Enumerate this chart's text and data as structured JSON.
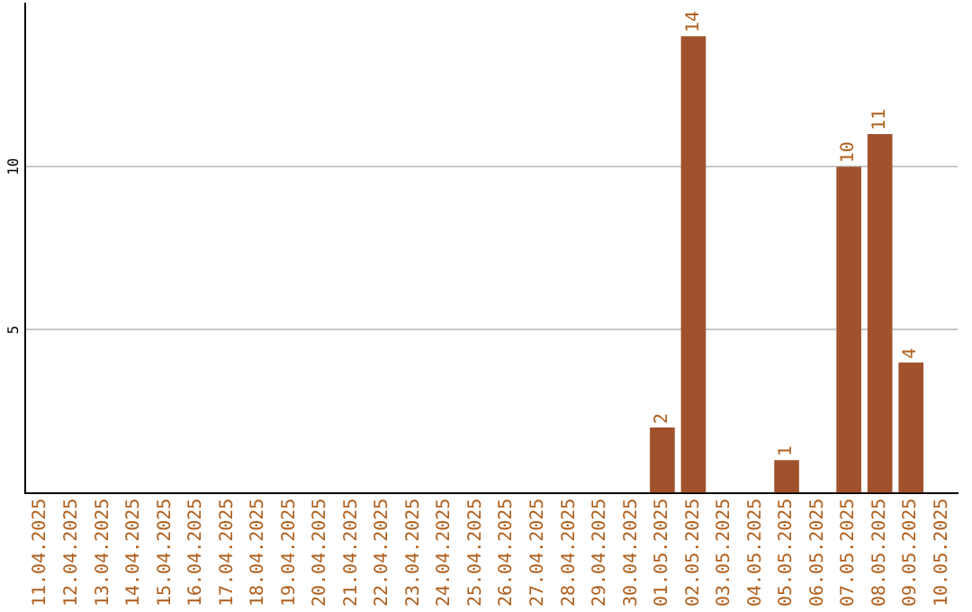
{
  "chart_data": {
    "type": "bar",
    "categories": [
      "11.04.2025",
      "12.04.2025",
      "13.04.2025",
      "14.04.2025",
      "15.04.2025",
      "16.04.2025",
      "17.04.2025",
      "18.04.2025",
      "19.04.2025",
      "20.04.2025",
      "21.04.2025",
      "22.04.2025",
      "23.04.2025",
      "24.04.2025",
      "25.04.2025",
      "26.04.2025",
      "27.04.2025",
      "28.04.2025",
      "29.04.2025",
      "30.04.2025",
      "01.05.2025",
      "02.05.2025",
      "03.05.2025",
      "04.05.2025",
      "05.05.2025",
      "06.05.2025",
      "07.05.2025",
      "08.05.2025",
      "09.05.2025",
      "10.05.2025"
    ],
    "values": [
      0,
      0,
      0,
      0,
      0,
      0,
      0,
      0,
      0,
      0,
      0,
      0,
      0,
      0,
      0,
      0,
      0,
      0,
      0,
      0,
      2,
      14,
      0,
      0,
      1,
      0,
      10,
      11,
      4,
      0
    ],
    "value_labels": [
      null,
      null,
      null,
      null,
      null,
      null,
      null,
      null,
      null,
      null,
      null,
      null,
      null,
      null,
      null,
      null,
      null,
      null,
      null,
      null,
      "2",
      "14",
      null,
      null,
      "1",
      null,
      "10",
      "11",
      "4",
      null
    ],
    "color": "#a0522d",
    "ylim": [
      0,
      15
    ],
    "yticks": [
      5,
      10
    ],
    "grid": "y",
    "legend": false
  }
}
